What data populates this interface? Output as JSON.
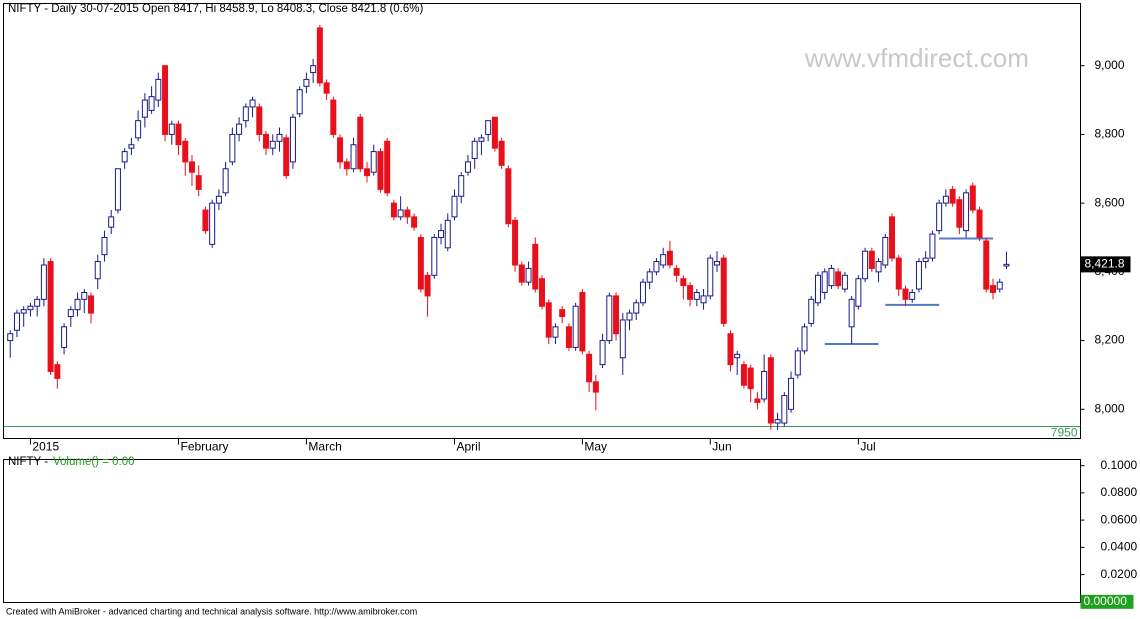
{
  "chart_data": [
    {
      "type": "candlestick",
      "title": "NIFTY - Daily 30-07-2015 Open 8417, Hi 8458.9, Lo 8408.3, Close 8421.8 (0.6%)",
      "watermark": "www.vfmdirect.com",
      "up_color": "#1a1a8c",
      "down_color": "#e8101a",
      "xlim": [
        -1,
        159
      ],
      "ylim": [
        7915,
        9181
      ],
      "xticks": [
        {
          "value": 3,
          "label": "2015"
        },
        {
          "value": 25,
          "label": "February"
        },
        {
          "value": 44,
          "label": "March"
        },
        {
          "value": 66,
          "label": "April"
        },
        {
          "value": 85,
          "label": "May"
        },
        {
          "value": 104,
          "label": "Jun"
        },
        {
          "value": 126,
          "label": "Jul"
        }
      ],
      "yticks": [
        {
          "value": 8000,
          "label": "8,000"
        },
        {
          "value": 8200,
          "label": "8,200"
        },
        {
          "value": 8400,
          "label": "8,400"
        },
        {
          "value": 8600,
          "label": "8,600"
        },
        {
          "value": 8800,
          "label": "8,800"
        },
        {
          "value": 9000,
          "label": "9,000"
        }
      ],
      "hline": {
        "value": 7950,
        "color": "#3a9a5a"
      },
      "support_lines": [
        {
          "value": 8190,
          "from": 121,
          "to": 129
        },
        {
          "value": 8304,
          "from": 130,
          "to": 138
        },
        {
          "value": 8497,
          "from": 138,
          "to": 146
        }
      ],
      "support_color": "#5577cc",
      "last_price_label": "8,421.8",
      "ohlc": [
        [
          8200,
          8230,
          8150,
          8220
        ],
        [
          8230,
          8290,
          8210,
          8280
        ],
        [
          8280,
          8300,
          8240,
          8290
        ],
        [
          8290,
          8310,
          8270,
          8300
        ],
        [
          8300,
          8330,
          8270,
          8320
        ],
        [
          8320,
          8440,
          8300,
          8420
        ],
        [
          8430,
          8440,
          8100,
          8110
        ],
        [
          8130,
          8140,
          8060,
          8090
        ],
        [
          8180,
          8250,
          8160,
          8240
        ],
        [
          8270,
          8300,
          8240,
          8290
        ],
        [
          8290,
          8340,
          8270,
          8320
        ],
        [
          8320,
          8350,
          8280,
          8340
        ],
        [
          8330,
          8340,
          8250,
          8280
        ],
        [
          8380,
          8450,
          8350,
          8430
        ],
        [
          8450,
          8520,
          8430,
          8500
        ],
        [
          8530,
          8580,
          8510,
          8560
        ],
        [
          8580,
          8700,
          8570,
          8700
        ],
        [
          8720,
          8760,
          8700,
          8750
        ],
        [
          8760,
          8790,
          8740,
          8770
        ],
        [
          8790,
          8870,
          8780,
          8840
        ],
        [
          8850,
          8920,
          8820,
          8900
        ],
        [
          8870,
          8940,
          8860,
          8910
        ],
        [
          8900,
          8980,
          8880,
          8960
        ],
        [
          9000,
          9000,
          8780,
          8800
        ],
        [
          8800,
          8840,
          8770,
          8830
        ],
        [
          8830,
          8840,
          8740,
          8770
        ],
        [
          8780,
          8790,
          8680,
          8720
        ],
        [
          8720,
          8740,
          8650,
          8690
        ],
        [
          8680,
          8710,
          8620,
          8640
        ],
        [
          8580,
          8590,
          8510,
          8520
        ],
        [
          8480,
          8610,
          8470,
          8600
        ],
        [
          8600,
          8640,
          8580,
          8620
        ],
        [
          8630,
          8720,
          8620,
          8700
        ],
        [
          8720,
          8820,
          8710,
          8800
        ],
        [
          8800,
          8850,
          8780,
          8830
        ],
        [
          8840,
          8890,
          8820,
          8880
        ],
        [
          8880,
          8910,
          8850,
          8900
        ],
        [
          8880,
          8890,
          8780,
          8800
        ],
        [
          8800,
          8810,
          8740,
          8760
        ],
        [
          8760,
          8800,
          8740,
          8780
        ],
        [
          8780,
          8820,
          8750,
          8800
        ],
        [
          8790,
          8800,
          8670,
          8680
        ],
        [
          8720,
          8860,
          8700,
          8850
        ],
        [
          8860,
          8940,
          8850,
          8930
        ],
        [
          8940,
          8980,
          8920,
          8960
        ],
        [
          8980,
          9020,
          8950,
          9000
        ],
        [
          9110,
          9119,
          8940,
          8950
        ],
        [
          8950,
          8960,
          8900,
          8920
        ],
        [
          8900,
          8910,
          8790,
          8800
        ],
        [
          8790,
          8800,
          8700,
          8720
        ],
        [
          8720,
          8730,
          8680,
          8700
        ],
        [
          8700,
          8790,
          8690,
          8770
        ],
        [
          8850,
          8860,
          8690,
          8700
        ],
        [
          8700,
          8720,
          8660,
          8680
        ],
        [
          8690,
          8770,
          8680,
          8750
        ],
        [
          8750,
          8760,
          8630,
          8640
        ],
        [
          8780,
          8790,
          8620,
          8630
        ],
        [
          8600,
          8610,
          8550,
          8560
        ],
        [
          8560,
          8620,
          8550,
          8580
        ],
        [
          8580,
          8590,
          8540,
          8560
        ],
        [
          8560,
          8570,
          8520,
          8530
        ],
        [
          8500,
          8510,
          8340,
          8350
        ],
        [
          8390,
          8400,
          8270,
          8330
        ],
        [
          8390,
          8510,
          8380,
          8500
        ],
        [
          8500,
          8540,
          8480,
          8520
        ],
        [
          8470,
          8570,
          8460,
          8550
        ],
        [
          8560,
          8640,
          8550,
          8620
        ],
        [
          8620,
          8690,
          8600,
          8680
        ],
        [
          8690,
          8740,
          8680,
          8720
        ],
        [
          8730,
          8790,
          8700,
          8780
        ],
        [
          8780,
          8800,
          8740,
          8790
        ],
        [
          8800,
          8840,
          8780,
          8840
        ],
        [
          8850,
          8850,
          8750,
          8760
        ],
        [
          8780,
          8790,
          8700,
          8710
        ],
        [
          8700,
          8710,
          8530,
          8540
        ],
        [
          8550,
          8560,
          8400,
          8420
        ],
        [
          8420,
          8430,
          8360,
          8370
        ],
        [
          8370,
          8430,
          8360,
          8410
        ],
        [
          8480,
          8500,
          8340,
          8350
        ],
        [
          8380,
          8390,
          8290,
          8300
        ],
        [
          8310,
          8320,
          8190,
          8210
        ],
        [
          8210,
          8250,
          8190,
          8240
        ],
        [
          8290,
          8300,
          8250,
          8270
        ],
        [
          8240,
          8250,
          8170,
          8180
        ],
        [
          8180,
          8310,
          8170,
          8300
        ],
        [
          8340,
          8350,
          8160,
          8170
        ],
        [
          8160,
          8170,
          8050,
          8080
        ],
        [
          8080,
          8100,
          7997,
          8050
        ],
        [
          8130,
          8220,
          8120,
          8200
        ],
        [
          8200,
          8340,
          8190,
          8330
        ],
        [
          8330,
          8340,
          8200,
          8220
        ],
        [
          8150,
          8280,
          8100,
          8260
        ],
        [
          8260,
          8290,
          8230,
          8280
        ],
        [
          8280,
          8320,
          8260,
          8310
        ],
        [
          8310,
          8380,
          8300,
          8370
        ],
        [
          8370,
          8410,
          8350,
          8400
        ],
        [
          8400,
          8440,
          8390,
          8430
        ],
        [
          8420,
          8470,
          8410,
          8450
        ],
        [
          8460,
          8490,
          8410,
          8420
        ],
        [
          8410,
          8420,
          8370,
          8390
        ],
        [
          8380,
          8390,
          8320,
          8360
        ],
        [
          8360,
          8370,
          8300,
          8320
        ],
        [
          8320,
          8350,
          8300,
          8340
        ],
        [
          8310,
          8350,
          8290,
          8330
        ],
        [
          8330,
          8450,
          8320,
          8440
        ],
        [
          8420,
          8460,
          8400,
          8430
        ],
        [
          8440,
          8450,
          8240,
          8250
        ],
        [
          8220,
          8230,
          8110,
          8130
        ],
        [
          8150,
          8170,
          8100,
          8160
        ],
        [
          8130,
          8140,
          8060,
          8070
        ],
        [
          8120,
          8130,
          8020,
          8060
        ],
        [
          8030,
          8050,
          8000,
          8020
        ],
        [
          8030,
          8160,
          8020,
          8110
        ],
        [
          8150,
          8160,
          7940,
          7960
        ],
        [
          7960,
          7990,
          7940,
          7970
        ],
        [
          7960,
          8050,
          7950,
          8040
        ],
        [
          8000,
          8110,
          7990,
          8090
        ],
        [
          8100,
          8180,
          8090,
          8170
        ],
        [
          8170,
          8250,
          8160,
          8240
        ],
        [
          8250,
          8330,
          8240,
          8320
        ],
        [
          8310,
          8400,
          8300,
          8390
        ],
        [
          8340,
          8410,
          8320,
          8400
        ],
        [
          8360,
          8420,
          8350,
          8410
        ],
        [
          8400,
          8410,
          8350,
          8360
        ],
        [
          8350,
          8400,
          8340,
          8390
        ],
        [
          8240,
          8330,
          8190,
          8320
        ],
        [
          8300,
          8390,
          8290,
          8380
        ],
        [
          8380,
          8470,
          8370,
          8460
        ],
        [
          8460,
          8470,
          8400,
          8410
        ],
        [
          8400,
          8440,
          8370,
          8430
        ],
        [
          8420,
          8510,
          8410,
          8500
        ],
        [
          8560,
          8570,
          8430,
          8440
        ],
        [
          8440,
          8450,
          8330,
          8350
        ],
        [
          8350,
          8360,
          8300,
          8320
        ],
        [
          8320,
          8350,
          8310,
          8340
        ],
        [
          8350,
          8440,
          8340,
          8430
        ],
        [
          8430,
          8460,
          8410,
          8440
        ],
        [
          8440,
          8520,
          8430,
          8510
        ],
        [
          8520,
          8610,
          8510,
          8600
        ],
        [
          8600,
          8640,
          8590,
          8620
        ],
        [
          8640,
          8650,
          8590,
          8600
        ],
        [
          8610,
          8620,
          8510,
          8530
        ],
        [
          8520,
          8640,
          8500,
          8630
        ],
        [
          8650,
          8660,
          8570,
          8580
        ],
        [
          8580,
          8590,
          8490,
          8500
        ],
        [
          8490,
          8500,
          8340,
          8350
        ],
        [
          8360,
          8380,
          8320,
          8340
        ],
        [
          8350,
          8380,
          8340,
          8370
        ],
        [
          8417,
          8458.9,
          8408.3,
          8421.8
        ]
      ]
    },
    {
      "type": "bar",
      "title_prefix": "NIFTY - ",
      "title": "Volume() = 0.00",
      "title_color": "#1f9a1f",
      "ylim": [
        -0.0005,
        0.1045
      ],
      "yticks": [
        0,
        {
          "value": 0.02,
          "label": "0.0200"
        },
        {
          "value": 0.04,
          "label": "0.0400"
        },
        {
          "value": 0.06,
          "label": "0.0600"
        },
        {
          "value": 0.08,
          "label": "0.0800"
        },
        {
          "value": 0.1,
          "label": "0.1000"
        }
      ],
      "last_value_label": "0.00000"
    }
  ],
  "footer": "Created with AmiBroker - advanced charting and technical analysis software. http://www.amibroker.com"
}
